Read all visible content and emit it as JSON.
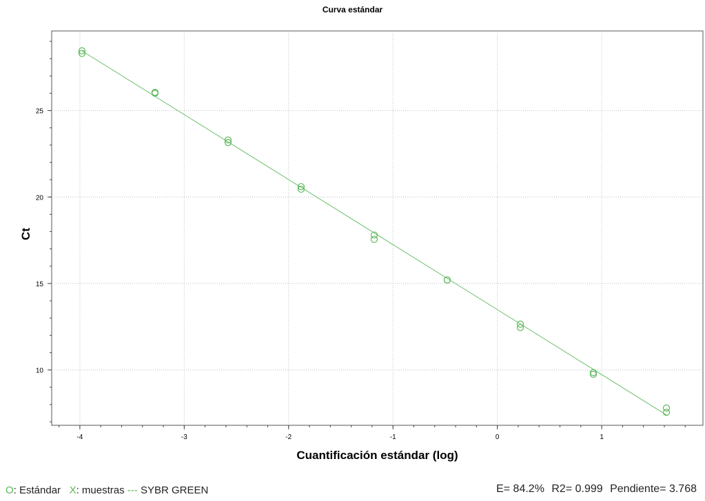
{
  "chart_data": {
    "type": "scatter",
    "title": "Curva estándar",
    "xlabel": "Cuantificación estándar (log)",
    "ylabel": "Ct",
    "xlim": [
      -4.27,
      1.97
    ],
    "ylim": [
      6.8,
      29.6
    ],
    "x_ticks": [
      -4,
      -3,
      -2,
      -1,
      0,
      1
    ],
    "x_tick_labels": [
      "-4",
      "-3",
      "-2",
      "-1",
      "0",
      "1"
    ],
    "y_ticks": [
      10,
      15,
      20,
      25
    ],
    "y_tick_labels": [
      "10",
      "15",
      "20",
      "25"
    ],
    "grid": true,
    "colors": {
      "points": "#5cb85c",
      "line": "#6cc06c",
      "grid": "#bdbdbd"
    },
    "series": [
      {
        "name": "Estándar",
        "marker": "circle",
        "points": [
          [
            -3.98,
            28.45
          ],
          [
            -3.98,
            28.3
          ],
          [
            -3.28,
            26.05
          ],
          [
            -3.28,
            26.0
          ],
          [
            -2.58,
            23.3
          ],
          [
            -2.58,
            23.15
          ],
          [
            -1.88,
            20.6
          ],
          [
            -1.88,
            20.45
          ],
          [
            -1.18,
            17.8
          ],
          [
            -1.18,
            17.55
          ],
          [
            -0.48,
            15.2
          ],
          [
            -0.48,
            15.2
          ],
          [
            0.22,
            12.65
          ],
          [
            0.22,
            12.45
          ],
          [
            0.92,
            9.85
          ],
          [
            0.92,
            9.75
          ],
          [
            1.62,
            7.8
          ],
          [
            1.62,
            7.55
          ]
        ]
      }
    ],
    "fit_line": {
      "x": [
        -3.98,
        1.62
      ],
      "y": [
        28.45,
        7.4
      ]
    }
  },
  "legend": {
    "standard_symbol": "O",
    "standard_label": ": Estándar",
    "samples_symbol": "X",
    "samples_label": ": muestras",
    "line_symbol": "---",
    "line_label": " SYBR GREEN"
  },
  "stats": {
    "efficiency": "E= 84.2%",
    "r2": "R2= 0.999",
    "slope": "Pendiente= 3.768"
  }
}
